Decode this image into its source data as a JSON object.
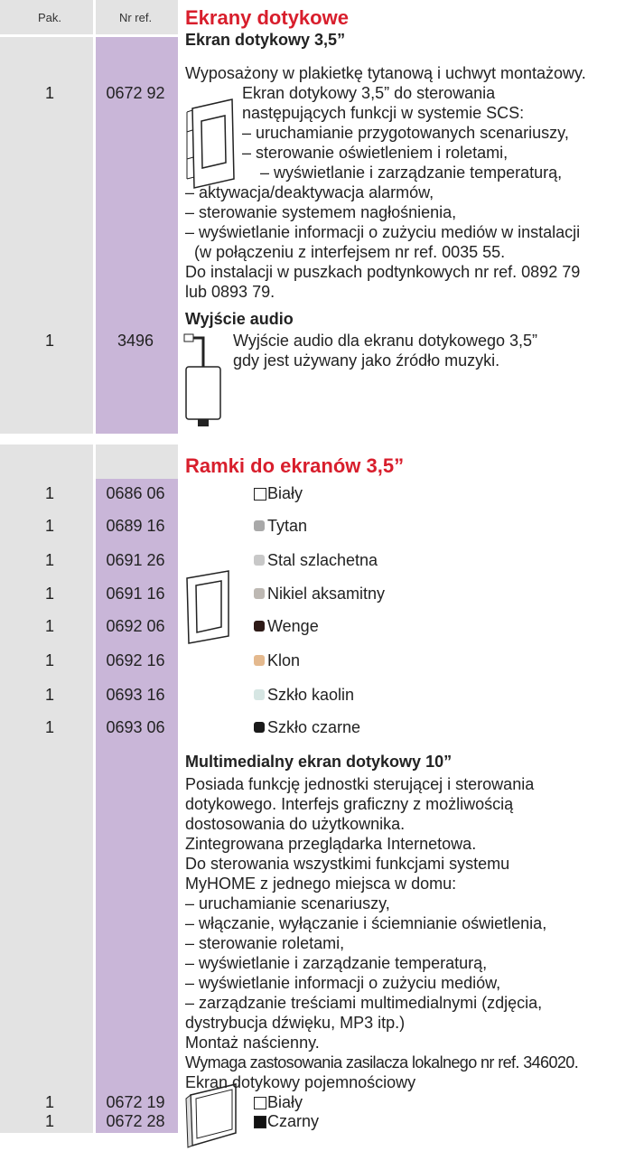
{
  "header": {
    "pak": "Pak.",
    "nr_ref": "Nr ref.",
    "title": "Ekrany dotykowe"
  },
  "touch_screen": {
    "heading": "Ekran dotykowy 3,5”",
    "pak": "1",
    "ref": "0672 92",
    "lines": [
      "Wyposażony w plakietkę tytanową i uchwyt montażowy.",
      "Ekran dotykowy 3,5” do sterowania",
      "następujących funkcji w systemie SCS:",
      "– uruchamianie przygotowanych scenariuszy,",
      "– sterowanie oświetleniem i roletami,",
      "– wyświetlanie i zarządzanie temperaturą,",
      "– aktywacja/deaktywacja alarmów,",
      "– sterowanie systemem nagłośnienia,",
      "– wyświetlanie informacji o zużyciu mediów w instalacji",
      "(w połączeniu z interfejsem nr ref. 0035 55.",
      "Do instalacji w puszkach podtynkowych nr ref. 0892 79",
      "lub 0893 79."
    ]
  },
  "audio": {
    "heading": "Wyjście audio",
    "pak": "1",
    "ref": "3496",
    "lines": [
      "Wyjście audio dla ekranu dotykowego 3,5”",
      "gdy jest używany jako źródło muzyki."
    ]
  },
  "frames": {
    "title": "Ramki do ekranów 3,5”",
    "items": [
      {
        "pak": "1",
        "ref": "0686 06",
        "label": "Biały"
      },
      {
        "pak": "1",
        "ref": "0689 16",
        "label": "Tytan"
      },
      {
        "pak": "1",
        "ref": "0691 26",
        "label": "Stal szlachetna"
      },
      {
        "pak": "1",
        "ref": "0691 16",
        "label": "Nikiel aksamitny"
      },
      {
        "pak": "1",
        "ref": "0692 06",
        "label": "Wenge"
      },
      {
        "pak": "1",
        "ref": "0692 16",
        "label": "Klon"
      },
      {
        "pak": "1",
        "ref": "0693 16",
        "label": "Szkło kaolin"
      },
      {
        "pak": "1",
        "ref": "0693 06",
        "label": "Szkło czarne"
      }
    ]
  },
  "multimedia": {
    "heading": "Multimedialny ekran dotykowy 10”",
    "lines": [
      "Posiada funkcję jednostki sterującej i sterowania",
      "dotykowego. Interfejs graficzny z możliwością",
      "dostosowania do użytkownika.",
      "Zintegrowana przeglądarka Internetowa.",
      "Do sterowania wszystkimi funkcjami systemu",
      "MyHOME z jednego miejsca w domu:",
      "– uruchamianie scenariuszy,",
      "– włączanie, wyłączanie i ściemnianie oświetlenia,",
      "– sterowanie roletami,",
      "– wyświetlanie i zarządzanie temperaturą,",
      "– wyświetlanie informacji o zużyciu mediów,",
      "– zarządzanie treściami multimedialnymi (zdjęcia,",
      "dystrybucja dźwięku, MP3 itp.)",
      "Montaż naścienny.",
      "Wymaga zastosowania zasilacza lokalnego nr ref. 346020.",
      "Ekran dotykowy pojemnościowy"
    ],
    "items": [
      {
        "pak": "1",
        "ref": "0672 19",
        "label": "Biały"
      },
      {
        "pak": "1",
        "ref": "0672 28",
        "label": "Czarny"
      }
    ]
  }
}
